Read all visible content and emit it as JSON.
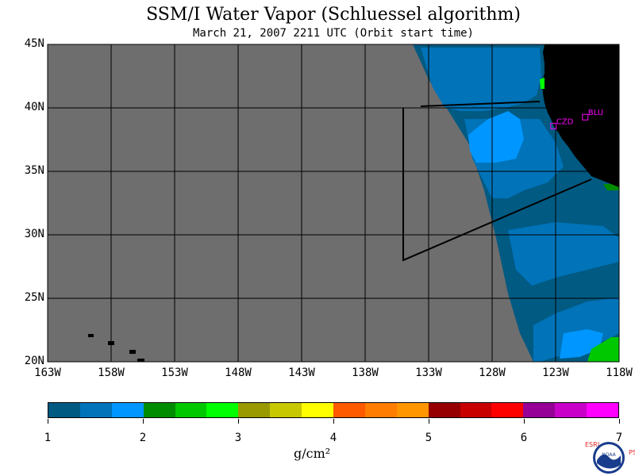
{
  "title": "SSM/I Water Vapor (Schluessel algorithm)",
  "subtitle": "March 21, 2007  2211 UTC  (Orbit start time)",
  "lat_labels": [
    "45N",
    "40N",
    "35N",
    "30N",
    "25N",
    "20N"
  ],
  "lon_labels": [
    "163W",
    "158W",
    "153W",
    "148W",
    "143W",
    "138W",
    "133W",
    "128W",
    "123W",
    "118W"
  ],
  "stations": [
    {
      "name": "CZD",
      "lat": 38.6,
      "lon": -123.2
    },
    {
      "name": "BLU",
      "lat": 39.3,
      "lon": -120.7
    }
  ],
  "colorbar": {
    "colors": [
      "#005a82",
      "#0073b9",
      "#0096ff",
      "#008c00",
      "#00c800",
      "#00ff00",
      "#999900",
      "#c8c800",
      "#ffff00",
      "#ff5a00",
      "#ff7d00",
      "#ff9600",
      "#960000",
      "#c80000",
      "#ff0000",
      "#960096",
      "#c800c8",
      "#ff00ff"
    ],
    "labels": [
      "1",
      "2",
      "3",
      "4",
      "5",
      "6",
      "7"
    ],
    "units": "g/cm²"
  },
  "colors": {
    "no_data": "#6e6e6e",
    "land": "#000000",
    "station_marker": "#ff00ff"
  },
  "logo": {
    "left_text": "ESRL",
    "right_text": "PSD",
    "emblem_text": "NOAA"
  }
}
